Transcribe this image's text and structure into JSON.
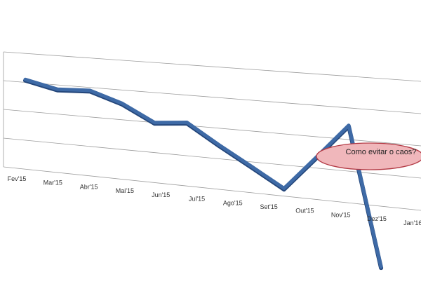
{
  "chart_data": {
    "type": "line",
    "style": "3d-perspective",
    "categories": [
      "Fev'15",
      "Mar'15",
      "Abr'15",
      "Mai'15",
      "Jun'15",
      "Jul'15",
      "Ago'15",
      "Set'15",
      "Out'15",
      "Nov'15",
      "Dez'15",
      "Jan'16"
    ],
    "series": [
      {
        "values": [
          3.1,
          2.85,
          2.9,
          2.55,
          2.0,
          2.1,
          1.45,
          0.85,
          0.25,
          1.35,
          2.45,
          -1.9
        ]
      }
    ],
    "ylim": [
      0,
      4
    ],
    "grid": true,
    "legend": "none",
    "annotation": {
      "text": "Como evitar o caos?"
    },
    "colors": {
      "line": "#3e6aa6",
      "line_dark": "#24467a",
      "grid": "#9c9c9c",
      "callout_fill": "#f0b7bb",
      "callout_stroke": "#b33a45"
    }
  }
}
